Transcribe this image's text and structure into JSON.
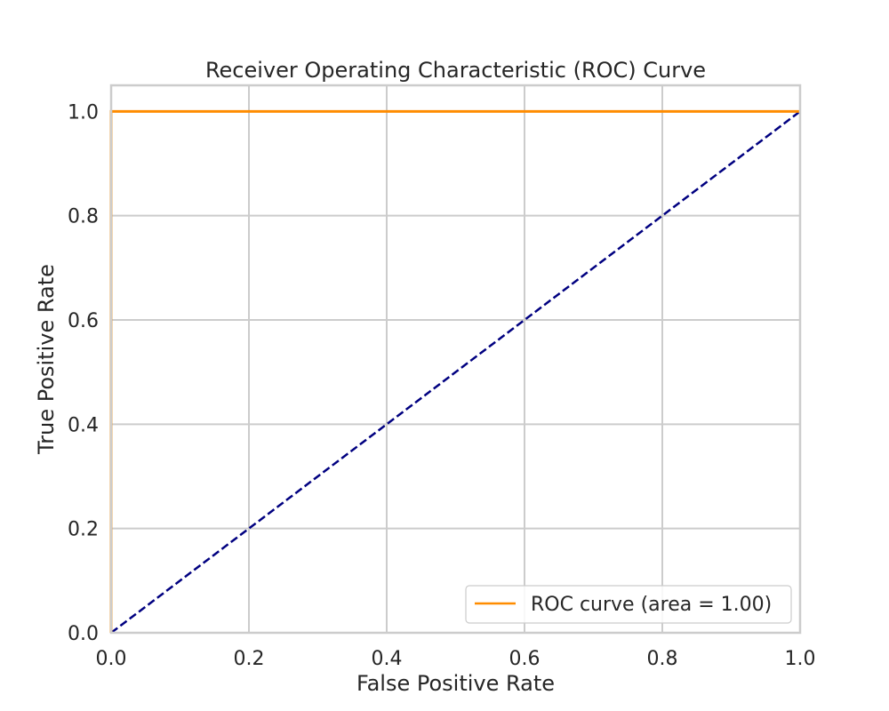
{
  "chart_data": {
    "type": "line",
    "title": "Receiver Operating Characteristic (ROC) Curve",
    "xlabel": "False Positive Rate",
    "ylabel": "True Positive Rate",
    "xlim": [
      0.0,
      1.0
    ],
    "ylim": [
      0.0,
      1.05
    ],
    "x_ticks": [
      0.0,
      0.2,
      0.4,
      0.6,
      0.8,
      1.0
    ],
    "y_ticks": [
      0.0,
      0.2,
      0.4,
      0.6,
      0.8,
      1.0
    ],
    "x_tick_labels": [
      "0.0",
      "0.2",
      "0.4",
      "0.6",
      "0.8",
      "1.0"
    ],
    "y_tick_labels": [
      "0.0",
      "0.2",
      "0.4",
      "0.6",
      "0.8",
      "1.0"
    ],
    "grid": true,
    "legend_position": "lower-right",
    "series": [
      {
        "name": "ROC curve (area = 1.00)",
        "color": "#ff8c00",
        "style": "solid",
        "in_legend": true,
        "x": [
          0.0,
          0.0,
          1.0
        ],
        "y": [
          0.0,
          1.0,
          1.0
        ]
      },
      {
        "color": "#000080",
        "style": "dashed",
        "in_legend": false,
        "x": [
          0.0,
          1.0
        ],
        "y": [
          0.0,
          1.0
        ]
      }
    ]
  }
}
